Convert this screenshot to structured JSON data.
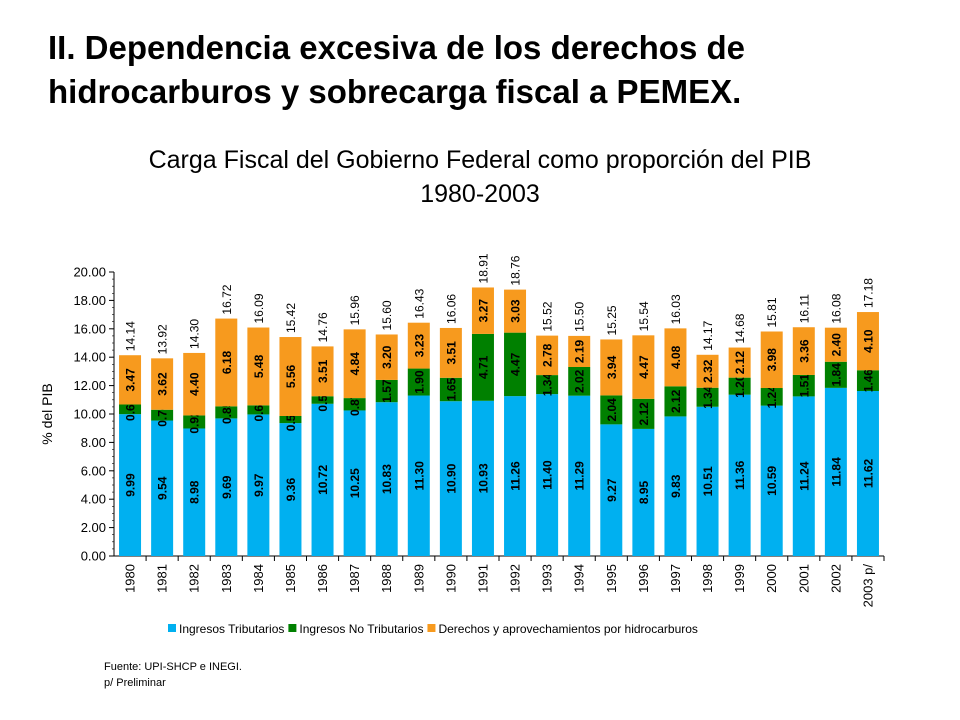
{
  "slide": {
    "title_line1": "II. Dependencia excesiva de los derechos  de",
    "title_line2": "hidrocarburos y sobrecarga fiscal a PEMEX."
  },
  "footnotes": {
    "source": "Fuente: UPI-SHCP  e INEGI.",
    "note": "p/ Preliminar"
  },
  "chart_data": {
    "type": "bar",
    "stacked": true,
    "title_line1": "Carga Fiscal del Gobierno Federal como proporción del PIB",
    "title_line2": "1980-2003",
    "ylabel": "% del PIB",
    "ylim": [
      0,
      20
    ],
    "yticks": [
      "0.00",
      "2.00",
      "4.00",
      "6.00",
      "8.00",
      "10.00",
      "12.00",
      "14.00",
      "16.00",
      "18.00",
      "20.00"
    ],
    "grid": false,
    "legend_position": "bottom",
    "categories": [
      "1980",
      "1981",
      "1982",
      "1983",
      "1984",
      "1985",
      "1986",
      "1987",
      "1988",
      "1989",
      "1990",
      "1991",
      "1992",
      "1993",
      "1994",
      "1995",
      "1996",
      "1997",
      "1998",
      "1999",
      "2000",
      "2001",
      "2002",
      "2003 p/"
    ],
    "series": [
      {
        "name": "Ingresos Tributarios",
        "color": "#00B0F0",
        "values": [
          9.99,
          9.54,
          8.98,
          9.69,
          9.97,
          9.36,
          10.72,
          10.25,
          10.83,
          11.3,
          10.9,
          10.93,
          11.26,
          11.4,
          11.29,
          9.27,
          8.95,
          9.83,
          10.51,
          11.36,
          10.59,
          11.24,
          11.84,
          11.62
        ],
        "labels": [
          "9.99",
          "9.54",
          "8.98",
          "9.69",
          "9.97",
          "9.36",
          "10.72",
          "10.25",
          "10.83",
          "11.30",
          "10.90",
          "10.93",
          "11.26",
          "11.40",
          "11.29",
          "9.27",
          "8.95",
          "9.83",
          "10.51",
          "11.36",
          "10.59",
          "11.24",
          "11.84",
          "11.62"
        ]
      },
      {
        "name": "Ingresos No Tributarios",
        "color": "#008000",
        "values": [
          0.68,
          0.76,
          0.92,
          0.85,
          0.64,
          0.5,
          0.53,
          0.87,
          1.57,
          1.9,
          1.65,
          4.71,
          4.47,
          1.34,
          2.02,
          2.04,
          2.12,
          2.12,
          1.34,
          1.2,
          1.24,
          1.51,
          1.84,
          1.46
        ],
        "labels": [
          "0.68",
          "0.76",
          "0.92",
          "0.85",
          "0.64",
          "0.50",
          "0.53",
          "0.87",
          "1.57",
          "1.90",
          "1.65",
          "4.71",
          "4.47",
          "1.34",
          "2.02",
          "2.04",
          "2.12",
          "2.12",
          "1.34",
          "1.20",
          "1.24",
          "1.51",
          "1.84",
          "1.46"
        ]
      },
      {
        "name": "Derechos y aprovechamientos por hidrocarburos",
        "color": "#F79A1E",
        "values": [
          3.47,
          3.62,
          4.4,
          6.18,
          5.48,
          5.56,
          3.51,
          4.84,
          3.2,
          3.23,
          3.51,
          3.27,
          3.03,
          2.78,
          2.19,
          3.94,
          4.47,
          4.08,
          2.32,
          2.12,
          3.98,
          3.36,
          2.4,
          4.1
        ],
        "labels": [
          "3.47",
          "3.62",
          "4.40",
          "6.18",
          "5.48",
          "5.56",
          "3.51",
          "4.84",
          "3.20",
          "3.23",
          "3.51",
          "3.27",
          "3.03",
          "2.78",
          "2.19",
          "3.94",
          "4.47",
          "4.08",
          "2.32",
          "2.12",
          "3.98",
          "3.36",
          "2.40",
          "4.10"
        ]
      }
    ],
    "totals": [
      14.14,
      13.92,
      14.3,
      16.72,
      16.09,
      15.42,
      14.76,
      15.96,
      15.6,
      16.43,
      16.06,
      18.91,
      18.76,
      15.52,
      15.5,
      15.25,
      15.54,
      16.03,
      14.17,
      14.68,
      15.81,
      16.11,
      16.08,
      17.18
    ],
    "total_labels": [
      "14.14",
      "13.92",
      "14.30",
      "16.72",
      "16.09",
      "15.42",
      "14.76",
      "15.96",
      "15.60",
      "16.43",
      "16.06",
      "18.91",
      "18.76",
      "15.52",
      "15.50",
      "15.25",
      "15.54",
      "16.03",
      "14.17",
      "14.68",
      "15.81",
      "16.11",
      "16.08",
      "17.18"
    ]
  }
}
